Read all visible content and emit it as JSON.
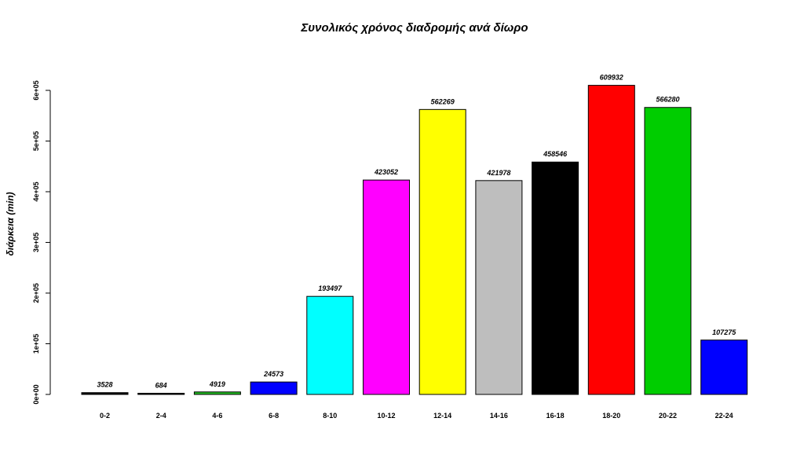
{
  "chart_data": {
    "type": "bar",
    "title": "Συνολικός χρόνος διαδρομής ανά δίωρο",
    "xlabel": "",
    "ylabel": "διάρκεια (min)",
    "categories": [
      "0-2",
      "2-4",
      "4-6",
      "6-8",
      "8-10",
      "10-12",
      "12-14",
      "14-16",
      "16-18",
      "18-20",
      "20-22",
      "22-24"
    ],
    "values": [
      3528,
      684,
      4919,
      24573,
      193497,
      423052,
      562269,
      421978,
      458546,
      609932,
      566280,
      107275
    ],
    "data_labels": [
      "3528",
      "684",
      "4919",
      "24573",
      "193497",
      "423052",
      "562269",
      "421978",
      "458546",
      "609932",
      "566280",
      "107275"
    ],
    "colors": [
      "#000000",
      "#000000",
      "#22bb22",
      "#0000ff",
      "#00ffff",
      "#ff00ff",
      "#ffff00",
      "#bebebe",
      "#000000",
      "#ff0000",
      "#00cd00",
      "#0000ff"
    ],
    "yticks": [
      0,
      100000,
      200000,
      300000,
      400000,
      500000,
      600000
    ],
    "ytick_labels": [
      "0e+00",
      "1e+05",
      "2e+05",
      "3e+05",
      "4e+05",
      "5e+05",
      "6e+05"
    ],
    "ylim": [
      0,
      600000
    ],
    "grid": false,
    "legend": "none"
  }
}
